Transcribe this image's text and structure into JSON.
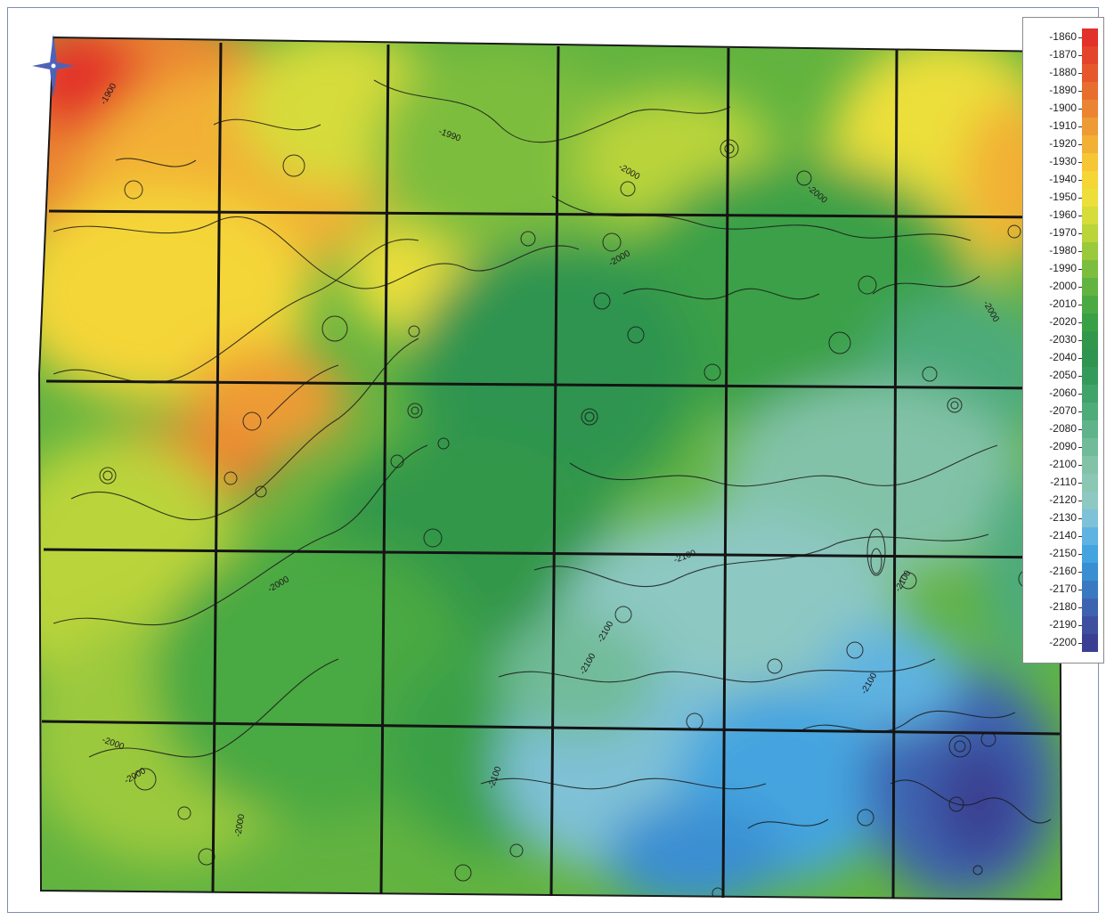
{
  "legend": {
    "items": [
      {
        "label": "-1860",
        "color": "#e2302a"
      },
      {
        "label": "-1870",
        "color": "#e4442a"
      },
      {
        "label": "-1880",
        "color": "#e6582c"
      },
      {
        "label": "-1890",
        "color": "#e86e2e"
      },
      {
        "label": "-1900",
        "color": "#ea8433"
      },
      {
        "label": "-1910",
        "color": "#ee9b36"
      },
      {
        "label": "-1920",
        "color": "#f2b035"
      },
      {
        "label": "-1930",
        "color": "#f6c635"
      },
      {
        "label": "-1940",
        "color": "#f4d637"
      },
      {
        "label": "-1950",
        "color": "#ecdf3a"
      },
      {
        "label": "-1960",
        "color": "#d6dc3a"
      },
      {
        "label": "-1970",
        "color": "#bad43a"
      },
      {
        "label": "-1980",
        "color": "#9bc93c"
      },
      {
        "label": "-1990",
        "color": "#7dbd3e"
      },
      {
        "label": "-2000",
        "color": "#62b340"
      },
      {
        "label": "-2010",
        "color": "#4aa943"
      },
      {
        "label": "-2020",
        "color": "#3aa046"
      },
      {
        "label": "-2030",
        "color": "#32974a"
      },
      {
        "label": "-2040",
        "color": "#2f944f"
      },
      {
        "label": "-2050",
        "color": "#349a5c"
      },
      {
        "label": "-2060",
        "color": "#3fa36a"
      },
      {
        "label": "-2070",
        "color": "#4eab7a"
      },
      {
        "label": "-2080",
        "color": "#5fb38a"
      },
      {
        "label": "-2090",
        "color": "#72bb9a"
      },
      {
        "label": "-2100",
        "color": "#82c2a8"
      },
      {
        "label": "-2110",
        "color": "#8cc6b4"
      },
      {
        "label": "-2120",
        "color": "#8dc8c2"
      },
      {
        "label": "-2130",
        "color": "#7fc1d6"
      },
      {
        "label": "-2140",
        "color": "#5fb3e0"
      },
      {
        "label": "-2150",
        "color": "#44a4df"
      },
      {
        "label": "-2160",
        "color": "#3a8fd2"
      },
      {
        "label": "-2170",
        "color": "#3a79c2"
      },
      {
        "label": "-2180",
        "color": "#3d63b0"
      },
      {
        "label": "-2190",
        "color": "#3f4fa0"
      },
      {
        "label": "-2200",
        "color": "#3a3f92"
      }
    ]
  },
  "contour_labels": [
    "-1900",
    "-1990",
    "-2000",
    "-2000",
    "-2000",
    "-2000",
    "-2000",
    "-2000",
    "-2100",
    "-2100",
    "-2100",
    "-2100",
    "-2100",
    "-2100",
    "-2000",
    "-2000"
  ],
  "north_arrow": {
    "icon": "compass-rose-icon",
    "color": "#4e63b8"
  }
}
